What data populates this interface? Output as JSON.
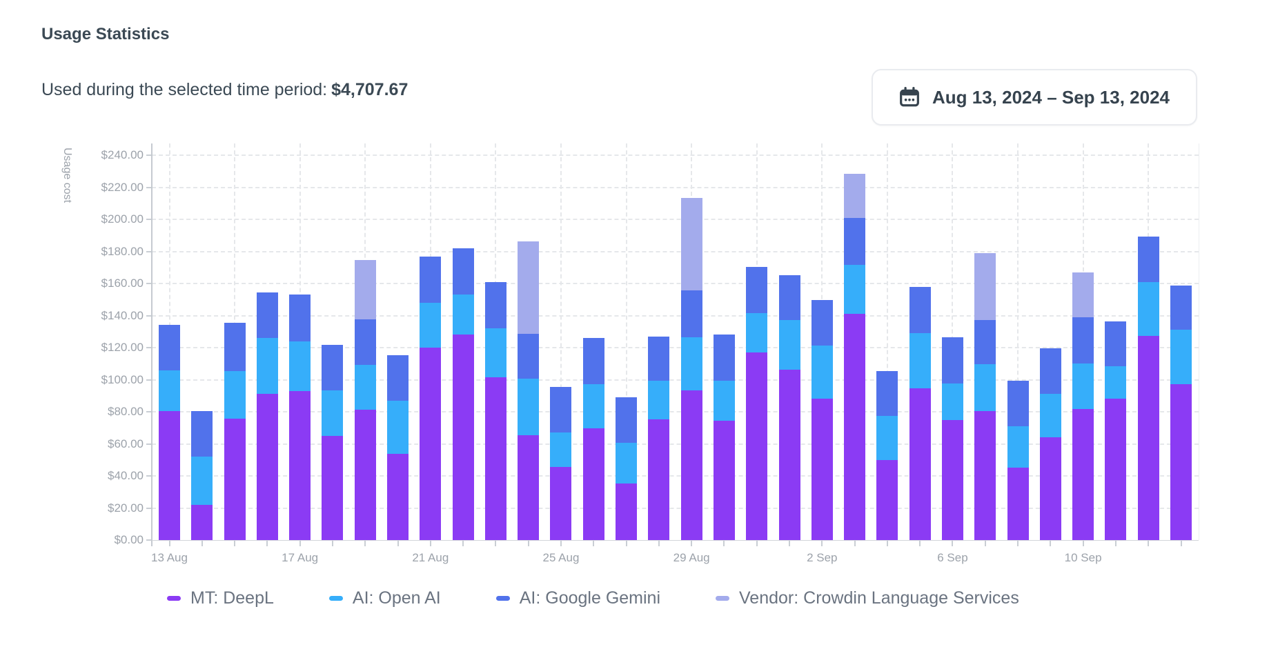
{
  "header": {
    "title": "Usage Statistics",
    "subtitle_label": "Used during the selected time period:",
    "subtitle_value": "$4,707.67",
    "date_range": "Aug 13, 2024 – Sep 13, 2024"
  },
  "chart_data": {
    "type": "bar",
    "stacked": true,
    "title": "",
    "xlabel": "",
    "ylabel": "Usage cost",
    "ylim": [
      0,
      240
    ],
    "ytick_step": 20,
    "grid": "dashed",
    "legend_position": "bottom",
    "y_tick_labels": [
      "$0.00",
      "$20.00",
      "$40.00",
      "$60.00",
      "$80.00",
      "$100.00",
      "$120.00",
      "$140.00",
      "$160.00",
      "$180.00",
      "$200.00",
      "$220.00",
      "$240.00"
    ],
    "x_tick_every": 4,
    "x_tick_labels": [
      "13 Aug",
      "17 Aug",
      "21 Aug",
      "25 Aug",
      "29 Aug",
      "2 Sep",
      "6 Sep",
      "10 Sep"
    ],
    "categories": [
      "13 Aug",
      "14 Aug",
      "15 Aug",
      "16 Aug",
      "17 Aug",
      "18 Aug",
      "19 Aug",
      "20 Aug",
      "21 Aug",
      "22 Aug",
      "23 Aug",
      "24 Aug",
      "25 Aug",
      "26 Aug",
      "27 Aug",
      "28 Aug",
      "29 Aug",
      "30 Aug",
      "31 Aug",
      "1 Sep",
      "2 Sep",
      "3 Sep",
      "4 Sep",
      "5 Sep",
      "6 Sep",
      "7 Sep",
      "8 Sep",
      "9 Sep",
      "10 Sep",
      "11 Sep",
      "12 Sep",
      "13 Sep"
    ],
    "series": [
      {
        "name": "MT: DeepL",
        "color": "#8b3bf4",
        "values": [
          80.46,
          22.06,
          75.9,
          91.39,
          93.11,
          64.77,
          81.17,
          53.64,
          120.03,
          128.23,
          101.51,
          65.38,
          45.44,
          69.83,
          35.22,
          75.5,
          93.51,
          74.49,
          116.89,
          106.06,
          88.15,
          141.18,
          49.89,
          94.73,
          75.0,
          80.66,
          45.34,
          63.96,
          81.77,
          88.25,
          127.21,
          97.06
        ]
      },
      {
        "name": "AI: Open AI",
        "color": "#36aefa",
        "values": [
          25.2,
          29.86,
          29.35,
          34.81,
          30.97,
          28.74,
          28.24,
          33.3,
          27.83,
          25.1,
          30.77,
          35.32,
          21.56,
          27.53,
          25.3,
          23.99,
          32.99,
          24.8,
          24.8,
          31.07,
          33.09,
          30.26,
          27.53,
          34.51,
          22.67,
          28.84,
          25.6,
          27.22,
          28.24,
          20.14,
          33.7,
          34.11
        ]
      },
      {
        "name": "AI: Google Gemini",
        "color": "#5172eb",
        "values": [
          28.54,
          28.54,
          30.36,
          28.03,
          28.94,
          28.34,
          28.13,
          28.44,
          28.74,
          28.64,
          28.74,
          27.83,
          28.34,
          28.74,
          28.74,
          27.63,
          29.05,
          28.84,
          28.54,
          28.24,
          28.64,
          29.35,
          28.03,
          28.64,
          28.64,
          27.83,
          28.34,
          28.34,
          28.94,
          28.13,
          28.13,
          27.63
        ]
      },
      {
        "name": "Vendor: Crowdin Language Services",
        "color": "#a3abec",
        "values": [
          0,
          0,
          0,
          0,
          0,
          0,
          37.04,
          0,
          0,
          0,
          0,
          57.69,
          0,
          0,
          0,
          0,
          57.99,
          0,
          0,
          0,
          0,
          27.43,
          0,
          0,
          0,
          41.6,
          0,
          0,
          28.13,
          0,
          0,
          0
        ]
      }
    ]
  },
  "colors": {
    "title_text": "#3b4954",
    "axis_text": "#9ca2aa",
    "legend_text": "#6a7380",
    "gridline": "#e5e7ea",
    "axis_line": "#c5cad0",
    "button_border": "#e9ebef",
    "button_text": "#36434e"
  }
}
